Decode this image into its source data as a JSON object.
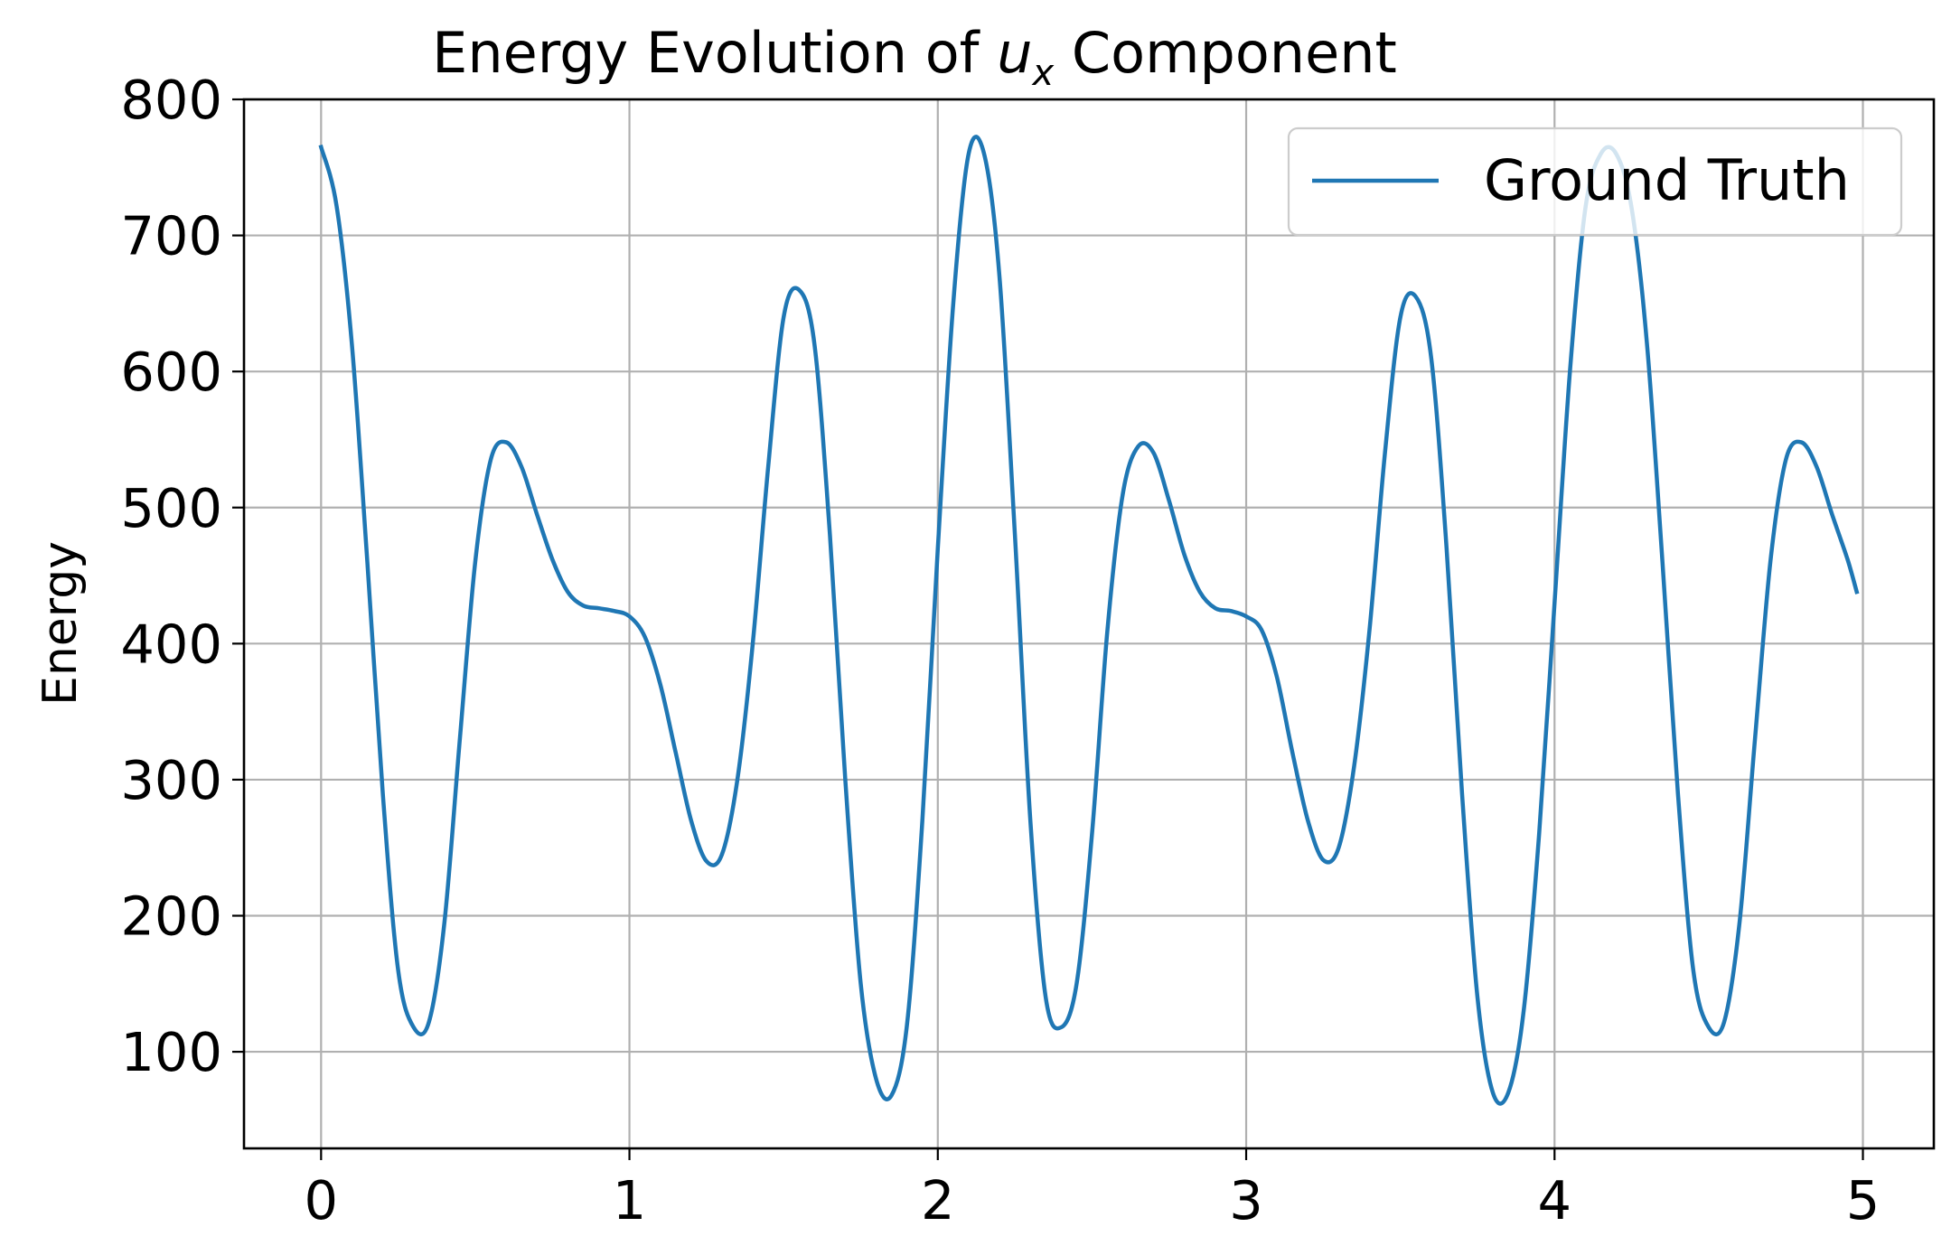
{
  "chart_data": {
    "type": "line",
    "title_prefix": "Energy Evolution of ",
    "title_var": "u",
    "title_sub": "x",
    "title_suffix": " Component",
    "xlabel": "",
    "ylabel": "Energy",
    "xlim": [
      -0.25,
      5.23
    ],
    "ylim": [
      29,
      800
    ],
    "xticks": [
      0,
      1,
      2,
      3,
      4,
      5
    ],
    "xtick_labels": [
      "0",
      "1",
      "2",
      "3",
      "4",
      "5"
    ],
    "yticks": [
      100,
      200,
      300,
      400,
      500,
      600,
      700,
      800
    ],
    "ytick_labels": [
      "100",
      "200",
      "300",
      "400",
      "500",
      "600",
      "700",
      "800"
    ],
    "grid": true,
    "legend": {
      "position": "top-right",
      "entries": [
        "Ground Truth"
      ]
    },
    "series": [
      {
        "name": "Ground Truth",
        "color": "#1f77b4",
        "x": [
          0,
          0.05,
          0.1,
          0.15,
          0.2,
          0.25,
          0.3,
          0.35,
          0.4,
          0.45,
          0.5,
          0.55,
          0.6,
          0.65,
          0.7,
          0.75,
          0.8,
          0.85,
          0.9,
          0.95,
          1.0,
          1.05,
          1.1,
          1.15,
          1.2,
          1.25,
          1.3,
          1.35,
          1.4,
          1.45,
          1.5,
          1.55,
          1.6,
          1.65,
          1.7,
          1.75,
          1.8,
          1.85,
          1.9,
          1.95,
          2.0,
          2.05,
          2.1,
          2.15,
          2.2,
          2.25,
          2.3,
          2.35,
          2.4,
          2.45,
          2.5,
          2.55,
          2.6,
          2.65,
          2.7,
          2.75,
          2.8,
          2.85,
          2.9,
          2.95,
          3.0,
          3.05,
          3.1,
          3.15,
          3.2,
          3.25,
          3.3,
          3.35,
          3.4,
          3.45,
          3.5,
          3.55,
          3.6,
          3.65,
          3.7,
          3.75,
          3.8,
          3.85,
          3.9,
          3.95,
          4.0,
          4.05,
          4.1,
          4.15,
          4.2,
          4.25,
          4.3,
          4.35,
          4.4,
          4.45,
          4.5,
          4.55,
          4.6,
          4.65,
          4.7,
          4.75,
          4.8,
          4.85,
          4.9,
          4.95,
          4.98
        ],
        "y": [
          765,
          722,
          620,
          460,
          290,
          160,
          118,
          122,
          195,
          330,
          460,
          535,
          548,
          530,
          495,
          462,
          438,
          428,
          426,
          424,
          420,
          405,
          370,
          320,
          270,
          240,
          245,
          300,
          400,
          530,
          640,
          660,
          620,
          480,
          300,
          150,
          80,
          68,
          120,
          270,
          470,
          650,
          760,
          760,
          670,
          480,
          270,
          140,
          118,
          150,
          260,
          410,
          510,
          545,
          540,
          505,
          465,
          438,
          426,
          424,
          420,
          410,
          375,
          320,
          270,
          241,
          250,
          310,
          410,
          540,
          640,
          655,
          610,
          470,
          290,
          140,
          70,
          70,
          130,
          260,
          430,
          600,
          720,
          760,
          760,
          720,
          620,
          460,
          290,
          160,
          118,
          122,
          195,
          330,
          460,
          535,
          548,
          530,
          495,
          462,
          438
        ]
      }
    ]
  }
}
